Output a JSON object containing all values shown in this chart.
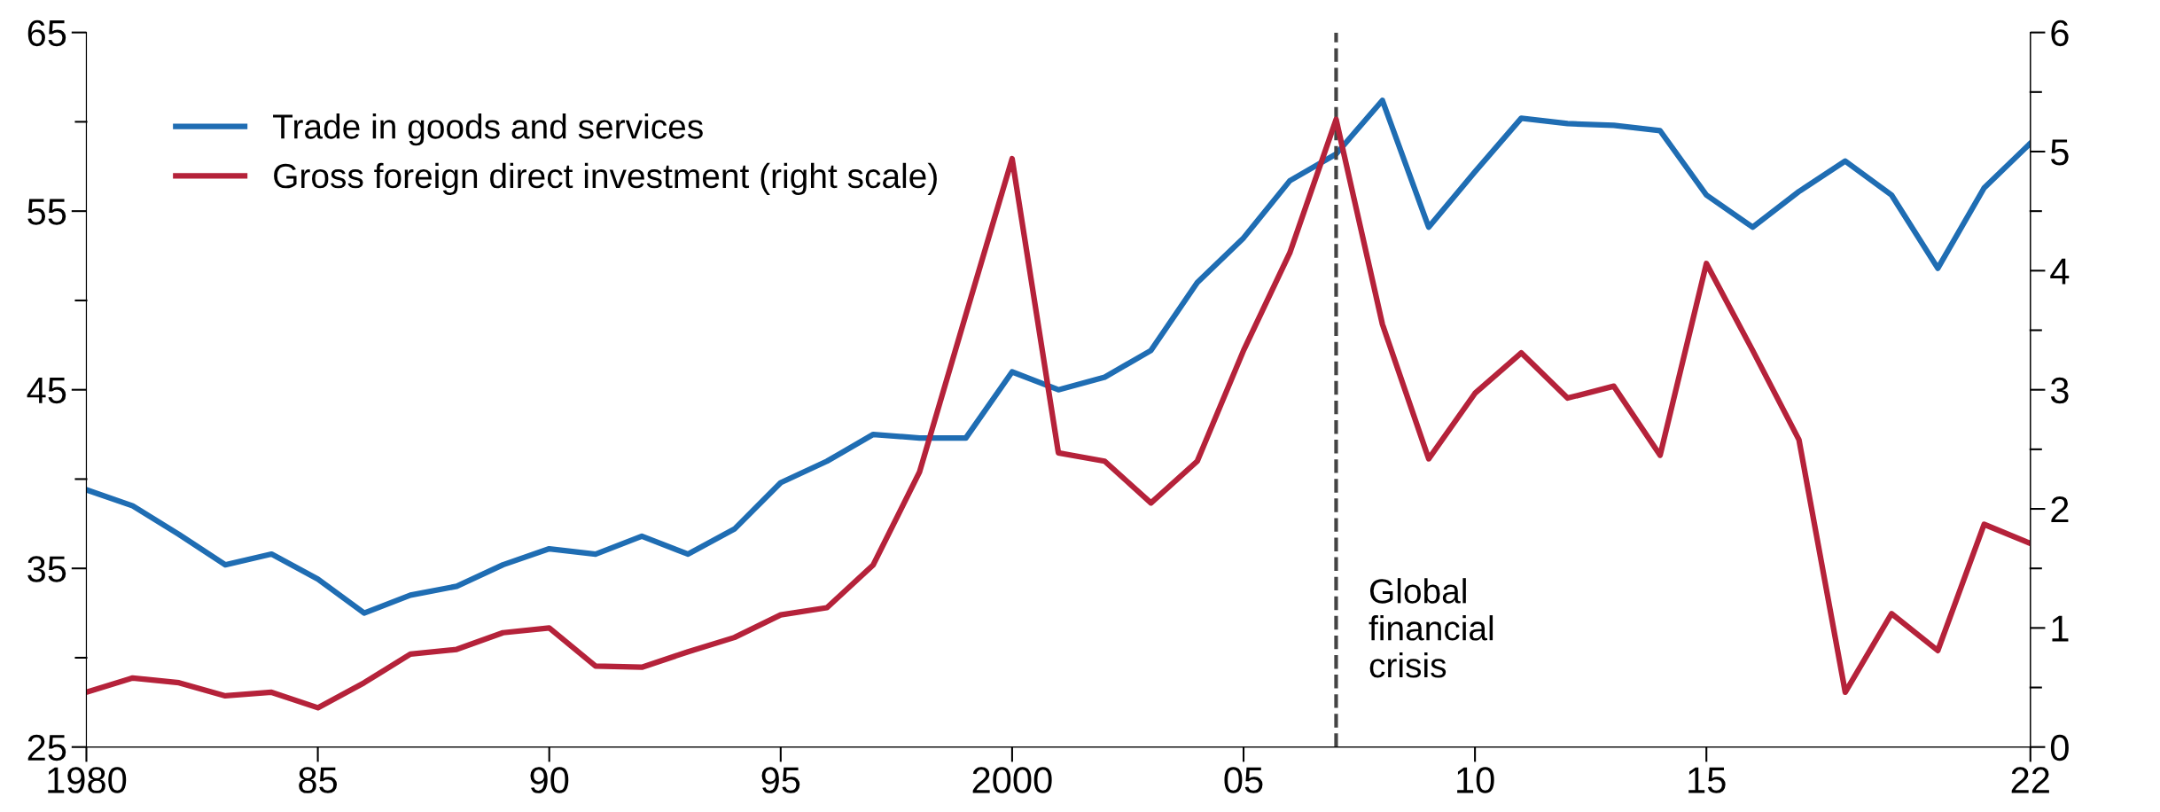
{
  "chart_data": {
    "type": "line",
    "x": [
      1980,
      1981,
      1982,
      1983,
      1984,
      1985,
      1986,
      1987,
      1988,
      1989,
      1990,
      1991,
      1992,
      1993,
      1994,
      1995,
      1996,
      1997,
      1998,
      1999,
      2000,
      2001,
      2002,
      2003,
      2004,
      2005,
      2006,
      2007,
      2008,
      2009,
      2010,
      2011,
      2012,
      2013,
      2014,
      2015,
      2016,
      2017,
      2018,
      2019,
      2020,
      2021,
      2022
    ],
    "series": [
      {
        "name": "Trade in goods and services",
        "color": "#1f6db3",
        "values": [
          39.4,
          38.5,
          36.9,
          35.2,
          35.8,
          34.4,
          32.5,
          33.5,
          34.0,
          35.2,
          36.1,
          35.8,
          36.8,
          35.8,
          37.2,
          39.8,
          41.0,
          42.5,
          42.3,
          42.3,
          46.0,
          45.0,
          45.7,
          47.2,
          51.0,
          53.5,
          56.7,
          58.2,
          61.2,
          54.1,
          57.2,
          60.2,
          59.9,
          59.8,
          59.5,
          55.9,
          54.1,
          56.1,
          57.8,
          55.9,
          51.8,
          56.3,
          58.8
        ]
      },
      {
        "name": "Gross foreign direct investment (right scale)",
        "color": "#b5223a",
        "axis": "y2",
        "values": [
          0.46,
          0.58,
          0.54,
          0.43,
          0.46,
          0.33,
          0.54,
          0.78,
          0.82,
          0.96,
          1.0,
          0.68,
          0.67,
          0.8,
          0.92,
          1.11,
          1.17,
          1.53,
          2.31,
          3.63,
          4.94,
          2.47,
          2.4,
          2.05,
          2.4,
          3.33,
          4.15,
          5.27,
          3.55,
          2.42,
          2.97,
          3.31,
          2.93,
          3.03,
          2.45,
          4.06,
          3.33,
          2.58,
          0.46,
          1.12,
          0.81,
          1.87,
          1.71
        ]
      }
    ],
    "xlim": [
      1980,
      2022
    ],
    "xticks": [
      {
        "value": 1980,
        "label": "1980"
      },
      {
        "value": 1985,
        "label": "85"
      },
      {
        "value": 1990,
        "label": "90"
      },
      {
        "value": 1995,
        "label": "95"
      },
      {
        "value": 2000,
        "label": "2000"
      },
      {
        "value": 2005,
        "label": "05"
      },
      {
        "value": 2010,
        "label": "10"
      },
      {
        "value": 2015,
        "label": "15"
      },
      {
        "value": 2022,
        "label": "22"
      }
    ],
    "ylim": [
      25,
      65
    ],
    "yticks": [
      25,
      {
        "value": 30,
        "label": null
      },
      35,
      {
        "value": 40,
        "label": null
      },
      45,
      {
        "value": 50,
        "label": null
      },
      55,
      {
        "value": 60,
        "label": null
      },
      65
    ],
    "y2lim": [
      0,
      6
    ],
    "y2ticks": [
      0,
      {
        "value": 0.5,
        "label": null
      },
      1,
      {
        "value": 1.5,
        "label": null
      },
      2,
      {
        "value": 2.5,
        "label": null
      },
      3,
      {
        "value": 3.5,
        "label": null
      },
      4,
      {
        "value": 4.5,
        "label": null
      },
      5,
      {
        "value": 5.5,
        "label": null
      },
      6
    ],
    "ref_lines": [
      {
        "axis": "x",
        "value": 2007,
        "label": "Global\nfinancial\ncrisis",
        "color": "#444444",
        "line_style": "dashed"
      }
    ],
    "grid": false,
    "legend": "top left",
    "marker": "none",
    "line_style": "solid"
  }
}
